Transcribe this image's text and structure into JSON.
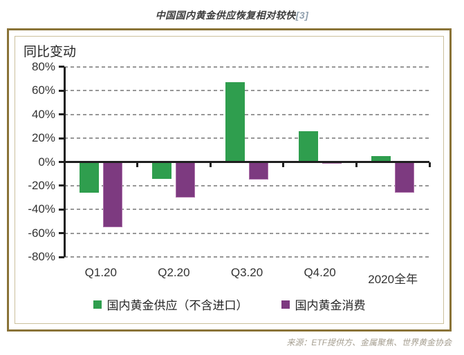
{
  "page": {
    "title": "中国国内黄金供应恢复相对较快",
    "title_ref": "[3]",
    "source": "来源：ETF提供方、金属聚焦、世界黄金协会"
  },
  "chart_data": {
    "type": "bar",
    "title": "中国国内黄金供应恢复相对较快[3]",
    "ylabel": "同比变动",
    "xlabel": "",
    "categories": [
      "Q1.20",
      "Q2.20",
      "Q3.20",
      "Q4.20",
      "2020全年"
    ],
    "series": [
      {
        "name": "国内黄金供应（不含进口）",
        "color": "#2f9e4e",
        "values": [
          -26,
          -14,
          67,
          26,
          5
        ]
      },
      {
        "name": "国内黄金消费",
        "color": "#7d3a80",
        "values": [
          -55,
          -30,
          -15,
          -1,
          -26
        ]
      }
    ],
    "ylim": [
      -80,
      80
    ],
    "ytick_step": 20,
    "ytick_suffix": "%",
    "grid": "horizontal-dashed",
    "legend_position": "bottom",
    "colors": {
      "axis": "#1f1f1f",
      "grid": "#979797"
    }
  }
}
